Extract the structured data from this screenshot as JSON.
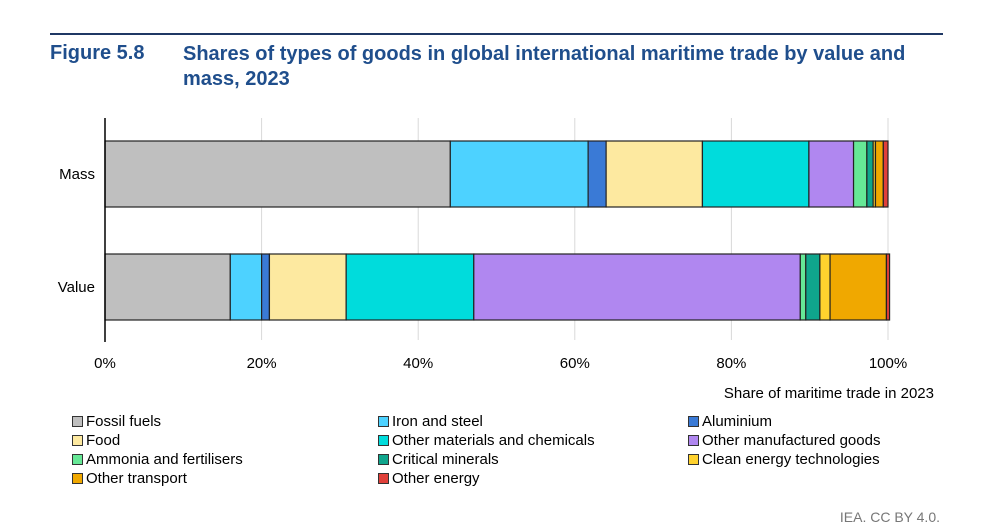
{
  "figure_label": "Figure 5.8",
  "title": "Shares of types of goods in global international maritime trade by value and mass, 2023",
  "credit": "IEA. CC BY 4.0.",
  "chart_data": {
    "type": "bar",
    "orientation": "horizontal",
    "stacked": true,
    "categories": [
      "Mass",
      "Value"
    ],
    "xlabel": "Share of maritime trade in 2023",
    "xlim": [
      0,
      100
    ],
    "xticks": [
      "0%",
      "20%",
      "40%",
      "60%",
      "80%",
      "100%"
    ],
    "grid": true,
    "legend_position": "bottom",
    "series": [
      {
        "name": "Fossil fuels",
        "color": "#bfbfbf",
        "values": [
          44.1,
          16.0
        ]
      },
      {
        "name": "Iron and steel",
        "color": "#4dd2ff",
        "values": [
          17.6,
          4.0
        ]
      },
      {
        "name": "Aluminium",
        "color": "#3a7ad6",
        "values": [
          2.3,
          1.0
        ]
      },
      {
        "name": "Food",
        "color": "#fde9a0",
        "values": [
          12.3,
          9.8
        ]
      },
      {
        "name": "Other materials and chemicals",
        "color": "#00dcdc",
        "values": [
          13.6,
          16.3
        ]
      },
      {
        "name": "Other manufactured goods",
        "color": "#b087f0",
        "values": [
          5.7,
          41.7
        ]
      },
      {
        "name": "Ammonia and fertilisers",
        "color": "#66e896",
        "values": [
          1.7,
          0.7
        ]
      },
      {
        "name": "Critical minerals",
        "color": "#0fa58c",
        "values": [
          0.8,
          1.8
        ]
      },
      {
        "name": "Clean energy technologies",
        "color": "#ffd22e",
        "values": [
          0.3,
          1.3
        ]
      },
      {
        "name": "Other transport",
        "color": "#f0a800",
        "values": [
          1.0,
          7.2
        ]
      },
      {
        "name": "Other energy",
        "color": "#e0403a",
        "values": [
          0.6,
          0.4
        ]
      }
    ]
  }
}
